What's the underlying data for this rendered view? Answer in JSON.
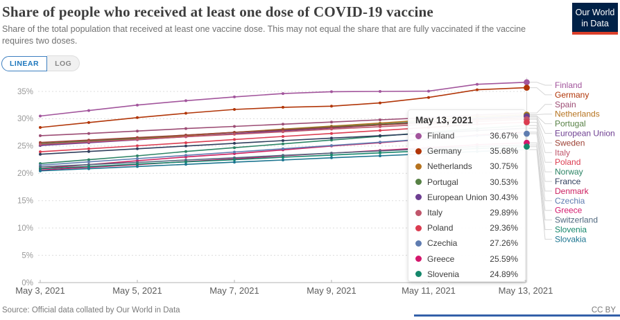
{
  "header": {
    "title": "Share of people who received at least one dose of COVID-19 vaccine",
    "subtitle": "Share of the total population that received at least one vaccine dose. This may not equal the share that are fully vaccinated if the vaccine requires two doses.",
    "logo_line1": "Our World",
    "logo_line2": "in Data"
  },
  "controls": {
    "linear_label": "LINEAR",
    "log_label": "LOG"
  },
  "footer": {
    "source": "Source: Official data collated by Our World in Data",
    "license": "CC BY"
  },
  "tooltip": {
    "date": "May 13, 2021",
    "rows": [
      {
        "label": "Finland",
        "value": "36.67%",
        "color": "#A2559C"
      },
      {
        "label": "Germany",
        "value": "35.68%",
        "color": "#B13507"
      },
      {
        "label": "Netherlands",
        "value": "30.75%",
        "color": "#B6731F"
      },
      {
        "label": "Portugal",
        "value": "30.53%",
        "color": "#578145"
      },
      {
        "label": "European Union",
        "value": "30.43%",
        "color": "#6D3E91"
      },
      {
        "label": "Italy",
        "value": "29.89%",
        "color": "#C0566B"
      },
      {
        "label": "Poland",
        "value": "29.36%",
        "color": "#DB3C50"
      },
      {
        "label": "Czechia",
        "value": "27.26%",
        "color": "#5F7CB0"
      },
      {
        "label": "Greece",
        "value": "25.59%",
        "color": "#D4176C"
      },
      {
        "label": "Slovenia",
        "value": "24.89%",
        "color": "#15876B"
      }
    ]
  },
  "chart_data": {
    "type": "line",
    "title": "Share of people who received at least one dose of COVID-19 vaccine",
    "xlabel": "",
    "ylabel": "",
    "ylim": [
      0,
      37
    ],
    "yticks": [
      0,
      5,
      10,
      15,
      20,
      25,
      30,
      35
    ],
    "ytick_suffix": "%",
    "grid": "dashed-horizontal",
    "legend_position": "right",
    "hover_date_index": 10,
    "x": [
      "May 3, 2021",
      "May 4, 2021",
      "May 5, 2021",
      "May 6, 2021",
      "May 7, 2021",
      "May 8, 2021",
      "May 9, 2021",
      "May 10, 2021",
      "May 11, 2021",
      "May 12, 2021",
      "May 13, 2021"
    ],
    "x_tick_indices": [
      0,
      2,
      4,
      6,
      8,
      10
    ],
    "x_tick_labels": [
      "May 3, 2021",
      "May 5, 2021",
      "May 7, 2021",
      "May 9, 2021",
      "May 11, 2021",
      "May 13, 2021"
    ],
    "series": [
      {
        "name": "Finland",
        "color": "#A2559C",
        "highlight": true,
        "values": [
          30.5,
          31.5,
          32.5,
          33.3,
          34.0,
          34.6,
          34.95,
          35.0,
          35.05,
          36.3,
          36.67
        ]
      },
      {
        "name": "Germany",
        "color": "#B13507",
        "highlight": true,
        "values": [
          28.4,
          29.3,
          30.2,
          31.0,
          31.7,
          32.1,
          32.3,
          32.9,
          33.9,
          35.3,
          35.68
        ]
      },
      {
        "name": "Spain",
        "color": "#9C4C74",
        "highlight": false,
        "values": [
          26.9,
          27.3,
          27.75,
          28.2,
          28.6,
          29.0,
          29.4,
          29.8,
          30.2,
          30.7,
          31.05
        ]
      },
      {
        "name": "Netherlands",
        "color": "#B6731F",
        "highlight": true,
        "values": [
          25.2,
          25.75,
          26.3,
          26.9,
          27.5,
          28.1,
          28.65,
          29.2,
          29.8,
          30.4,
          30.75
        ]
      },
      {
        "name": "Portugal",
        "color": "#578145",
        "highlight": true,
        "values": [
          25.45,
          25.95,
          26.45,
          27.0,
          27.5,
          28.0,
          28.5,
          29.0,
          29.55,
          30.1,
          30.53
        ]
      },
      {
        "name": "European Union",
        "color": "#6D3E91",
        "highlight": true,
        "values": [
          25.1,
          25.6,
          26.15,
          26.7,
          27.25,
          27.8,
          28.3,
          28.85,
          29.4,
          30.0,
          30.43
        ]
      },
      {
        "name": "Sweden",
        "color": "#9D4236",
        "highlight": false,
        "values": [
          25.65,
          26.1,
          26.55,
          27.0,
          27.5,
          27.95,
          28.4,
          28.85,
          29.3,
          29.8,
          30.15
        ]
      },
      {
        "name": "Italy",
        "color": "#C0566B",
        "highlight": true,
        "values": [
          25.3,
          25.75,
          26.2,
          26.7,
          27.15,
          27.6,
          28.1,
          28.55,
          29.0,
          29.5,
          29.89
        ]
      },
      {
        "name": "Poland",
        "color": "#DB3C50",
        "highlight": true,
        "values": [
          23.95,
          24.5,
          25.05,
          25.6,
          26.2,
          26.75,
          27.3,
          27.85,
          28.4,
          29.0,
          29.36
        ]
      },
      {
        "name": "Norway",
        "color": "#2C8465",
        "highlight": false,
        "values": [
          21.8,
          22.5,
          23.2,
          24.0,
          24.7,
          25.4,
          26.1,
          26.8,
          27.5,
          28.2,
          28.75
        ]
      },
      {
        "name": "France",
        "color": "#2F3E5C",
        "highlight": false,
        "values": [
          23.5,
          24.0,
          24.5,
          25.0,
          25.5,
          26.0,
          26.45,
          26.9,
          27.35,
          27.85,
          28.25
        ]
      },
      {
        "name": "Denmark",
        "color": "#CC2161",
        "highlight": false,
        "values": [
          20.9,
          21.6,
          22.3,
          23.0,
          23.6,
          24.3,
          25.0,
          25.6,
          26.3,
          27.0,
          27.55
        ]
      },
      {
        "name": "Czechia",
        "color": "#5F7CB0",
        "highlight": true,
        "values": [
          21.5,
          22.1,
          22.7,
          23.3,
          23.9,
          24.5,
          25.1,
          25.7,
          26.3,
          26.9,
          27.26
        ]
      },
      {
        "name": "Greece",
        "color": "#D4176C",
        "highlight": true,
        "values": [
          20.6,
          21.1,
          21.6,
          22.15,
          22.65,
          23.2,
          23.7,
          24.2,
          24.7,
          25.25,
          25.59
        ]
      },
      {
        "name": "Switzerland",
        "color": "#51697F",
        "highlight": false,
        "values": [
          21.2,
          21.6,
          22.0,
          22.45,
          22.85,
          23.3,
          23.7,
          24.1,
          24.5,
          24.9,
          25.2
        ]
      },
      {
        "name": "Slovenia",
        "color": "#15876B",
        "highlight": true,
        "values": [
          20.85,
          21.25,
          21.7,
          22.1,
          22.5,
          22.95,
          23.35,
          23.75,
          24.15,
          24.55,
          24.89
        ]
      },
      {
        "name": "Slovakia",
        "color": "#1C7590",
        "highlight": false,
        "values": [
          20.45,
          20.85,
          21.25,
          21.65,
          22.05,
          22.45,
          22.85,
          23.2,
          23.6,
          24.0,
          24.35
        ]
      }
    ]
  }
}
